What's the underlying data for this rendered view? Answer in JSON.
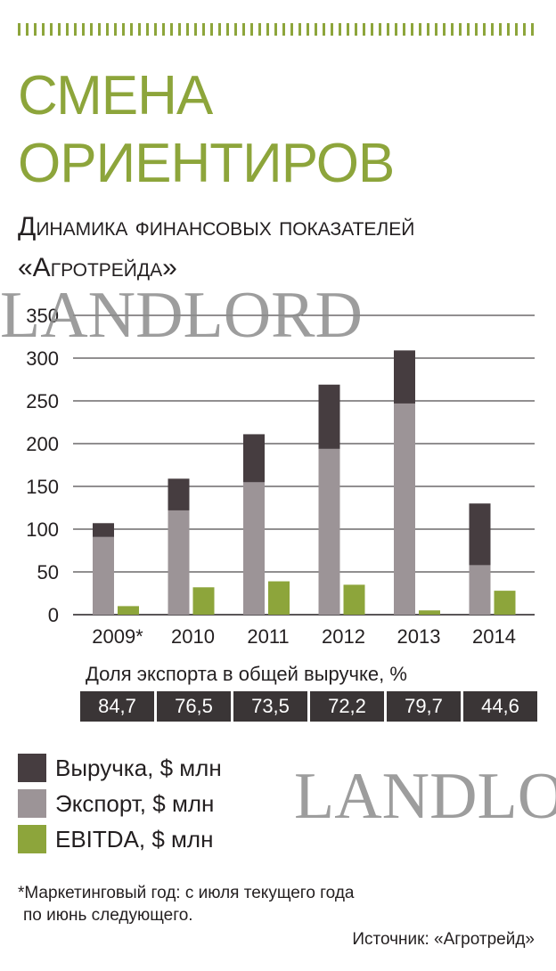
{
  "header": {
    "title_line1": "СМЕНА",
    "title_line2": "ОРИЕНТИРОВ",
    "subtitle_line1": "Динамика финансовых показателей",
    "subtitle_line2": "«Агротрейда»"
  },
  "watermark": "LANDLORD",
  "watermark2": "LANDLO",
  "colors": {
    "accent": "#8da53b",
    "revenue": "#463d40",
    "export": "#9c9497",
    "ebitda": "#8da53b",
    "share_bg": "#3a3536"
  },
  "chart_data": {
    "type": "bar",
    "categories": [
      "2009*",
      "2010",
      "2011",
      "2012",
      "2013",
      "2014"
    ],
    "series": [
      {
        "name": "Выручка, $ млн",
        "values": [
          107,
          159,
          211,
          269,
          309,
          130
        ]
      },
      {
        "name": "Экспорт, $ млн",
        "values": [
          91,
          122,
          155,
          194,
          247,
          58
        ]
      },
      {
        "name": "EBITDA, $ млн",
        "values": [
          10,
          32,
          39,
          35,
          5,
          28
        ]
      }
    ],
    "y_ticks": [
      "0",
      "50",
      "100",
      "150",
      "200",
      "250",
      "300",
      "350"
    ],
    "ylim": [
      0,
      350
    ],
    "grid": true,
    "title": "",
    "xlabel": "",
    "ylabel": ""
  },
  "export_share": {
    "label": "Доля экспорта в общей выручке, %",
    "values": [
      "84,7",
      "76,5",
      "73,5",
      "72,2",
      "79,7",
      "44,6"
    ]
  },
  "legend": [
    {
      "label": "Выручка, $ млн"
    },
    {
      "label": "Экспорт, $ млн"
    },
    {
      "label": "EBITDA, $ млн"
    }
  ],
  "footnote": {
    "line1": "*Маркетинговый год: с июля текущего года",
    "line2": "по июнь следующего."
  },
  "source": "Источник: «Агротрейд»"
}
